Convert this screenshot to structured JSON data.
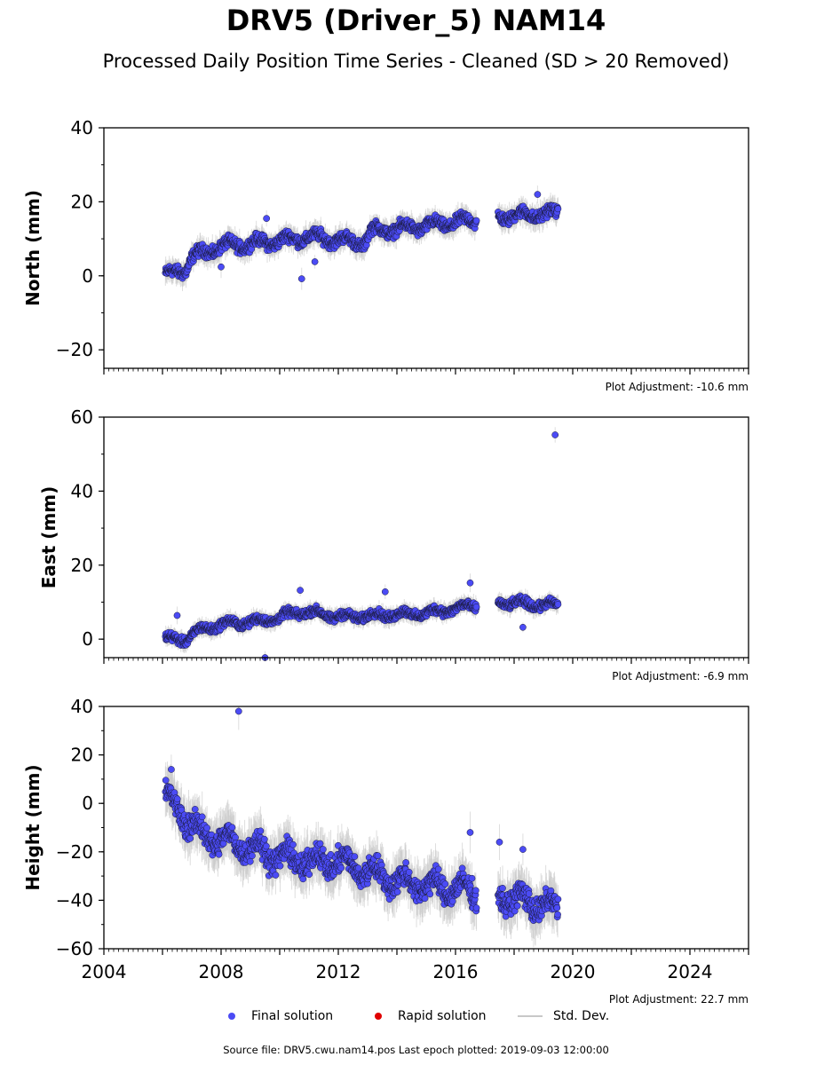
{
  "header": {
    "title": "DRV5 (Driver_5) NAM14",
    "subtitle": "Processed Daily Position Time Series - Cleaned (SD > 20 Removed)"
  },
  "colors": {
    "final": "#4b4bf5",
    "rapid": "#e00000",
    "stddev": "#c8c8c8",
    "edge": "#1a1a3a"
  },
  "legend": {
    "final_label": "Final solution",
    "rapid_label": "Rapid solution",
    "std_label": "Std. Dev."
  },
  "footer": {
    "text": "Source file: DRV5.cwu.nam14.pos  Last epoch plotted: 2019-09-03 12:00:00"
  },
  "chart_data": [
    {
      "type": "scatter",
      "ylabel": "North (mm)",
      "xlim": [
        2004,
        2026
      ],
      "ylim": [
        -25,
        40
      ],
      "yticks": [
        -20,
        0,
        20,
        40
      ],
      "xticks": [],
      "adjustment": "Plot Adjustment: -10.6 mm",
      "series": [
        {
          "trend": [
            [
              2006.1,
              0
            ],
            [
              2006.8,
              2
            ],
            [
              2007.0,
              5
            ],
            [
              2008.0,
              8
            ],
            [
              2009.5,
              9
            ],
            [
              2011.0,
              10.5
            ],
            [
              2012.9,
              9
            ],
            [
              2013.1,
              12
            ],
            [
              2015.0,
              13.5
            ],
            [
              2016.6,
              15
            ],
            [
              2017.5,
              16
            ],
            [
              2019.5,
              17
            ]
          ],
          "noise": 2.2,
          "outliers": [
            [
              2009.55,
              15.5
            ],
            [
              2010.75,
              -0.8
            ],
            [
              2018.8,
              22
            ],
            [
              2011.2,
              3.8
            ],
            [
              2008.0,
              2.4
            ]
          ]
        }
      ]
    },
    {
      "type": "scatter",
      "ylabel": "East (mm)",
      "xlim": [
        2004,
        2026
      ],
      "ylim": [
        -5,
        60
      ],
      "yticks": [
        0,
        20,
        40,
        60
      ],
      "xticks": [],
      "adjustment": "Plot Adjustment: -6.9 mm",
      "series": [
        {
          "trend": [
            [
              2006.1,
              0
            ],
            [
              2006.8,
              0
            ],
            [
              2007.3,
              2.5
            ],
            [
              2008.0,
              4
            ],
            [
              2009.5,
              5
            ],
            [
              2010.8,
              7.5
            ],
            [
              2012.0,
              6
            ],
            [
              2013.5,
              6.5
            ],
            [
              2015.0,
              7
            ],
            [
              2016.6,
              9
            ],
            [
              2017.5,
              10
            ],
            [
              2019.5,
              9
            ]
          ],
          "noise": 1.6,
          "outliers": [
            [
              2019.4,
              55.2
            ],
            [
              2009.5,
              -5
            ],
            [
              2010.7,
              13.2
            ],
            [
              2013.6,
              12.8
            ],
            [
              2016.5,
              15.2
            ],
            [
              2018.3,
              3.2
            ],
            [
              2006.5,
              6.4
            ]
          ]
        }
      ]
    },
    {
      "type": "scatter",
      "ylabel": "Height (mm)",
      "xlim": [
        2004,
        2026
      ],
      "ylim": [
        -60,
        40
      ],
      "yticks": [
        -60,
        -40,
        -20,
        0,
        20,
        40
      ],
      "xticks": [
        2004,
        2008,
        2012,
        2016,
        2020,
        2024
      ],
      "adjustment": "Plot Adjustment: 22.7 mm",
      "series": [
        {
          "trend": [
            [
              2006.1,
              2
            ],
            [
              2006.6,
              -3
            ],
            [
              2007.2,
              -12
            ],
            [
              2008.0,
              -15
            ],
            [
              2009.0,
              -18
            ],
            [
              2010.0,
              -22
            ],
            [
              2011.0,
              -24
            ],
            [
              2012.0,
              -24
            ],
            [
              2013.0,
              -28
            ],
            [
              2014.0,
              -32
            ],
            [
              2015.0,
              -34
            ],
            [
              2016.6,
              -36
            ],
            [
              2017.5,
              -38
            ],
            [
              2019.0,
              -42
            ],
            [
              2019.5,
              -44
            ]
          ],
          "noise": 7,
          "outliers": [
            [
              2008.6,
              38
            ],
            [
              2017.5,
              -16
            ],
            [
              2016.5,
              -12
            ],
            [
              2018.3,
              -19
            ],
            [
              2006.3,
              14
            ]
          ]
        }
      ]
    }
  ]
}
